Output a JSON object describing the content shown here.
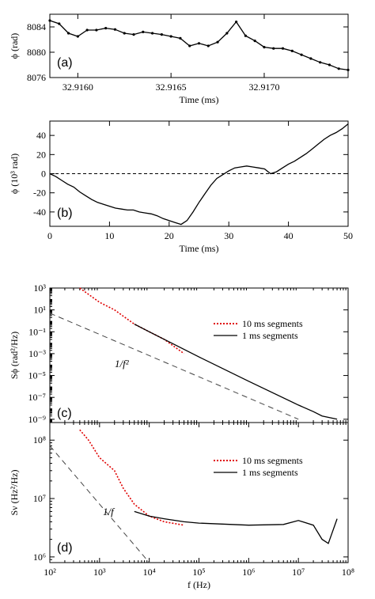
{
  "chart_data": [
    {
      "id": "a",
      "type": "line",
      "panel_label": "(a)",
      "xlabel": "Time (ms)",
      "ylabel": "ϕ (rad)",
      "xlim": [
        32.91585,
        32.91745
      ],
      "ylim": [
        8076,
        8086
      ],
      "xticks": [
        32.916,
        32.9165,
        32.917
      ],
      "xtick_labels": [
        "32.9160",
        "32.9165",
        "32.9170"
      ],
      "yticks": [
        8076,
        8080,
        8084
      ],
      "ytick_labels": [
        "8076",
        "8080",
        "8084"
      ],
      "series": [
        {
          "style": "black-line-with-dots",
          "x": [
            32.91585,
            32.9159,
            32.91595,
            32.916,
            32.91605,
            32.9161,
            32.91615,
            32.9162,
            32.91625,
            32.9163,
            32.91635,
            32.9164,
            32.91645,
            32.9165,
            32.91655,
            32.9166,
            32.91665,
            32.9167,
            32.91675,
            32.9168,
            32.91685,
            32.9169,
            32.91695,
            32.917,
            32.91705,
            32.9171,
            32.91715,
            32.9172,
            32.91725,
            32.9173,
            32.91735,
            32.9174,
            32.91745
          ],
          "y": [
            8085.0,
            8084.5,
            8083.0,
            8082.5,
            8083.5,
            8083.5,
            8083.8,
            8083.6,
            8083.0,
            8082.8,
            8083.2,
            8083.0,
            8082.8,
            8082.5,
            8082.2,
            8081.0,
            8081.4,
            8081.0,
            8081.6,
            8083.0,
            8084.8,
            8082.6,
            8081.8,
            8080.8,
            8080.6,
            8080.6,
            8080.2,
            8079.6,
            8079.0,
            8078.4,
            8078.0,
            8077.4,
            8077.2
          ]
        }
      ]
    },
    {
      "id": "b",
      "type": "line",
      "panel_label": "(b)",
      "xlabel": "Time (ms)",
      "ylabel": "ϕ (10³ rad)",
      "xlim": [
        0,
        50
      ],
      "ylim": [
        -55,
        55
      ],
      "xticks": [
        0,
        10,
        20,
        30,
        40,
        50
      ],
      "xtick_labels": [
        "0",
        "10",
        "20",
        "30",
        "40",
        "50"
      ],
      "yticks": [
        -40,
        -20,
        0,
        20,
        40
      ],
      "ytick_labels": [
        "-40",
        "-20",
        "0",
        "20",
        "40"
      ],
      "zero_line": "dashed",
      "series": [
        {
          "style": "black-line",
          "x": [
            0,
            1,
            2,
            3,
            4,
            5,
            6,
            7,
            8,
            9,
            10,
            11,
            12,
            13,
            14,
            15,
            16,
            17,
            18,
            19,
            20,
            21,
            22,
            23,
            24,
            25,
            26,
            27,
            28,
            29,
            30,
            31,
            32,
            33,
            34,
            35,
            36,
            37,
            38,
            39,
            40,
            41,
            42,
            43,
            44,
            45,
            46,
            47,
            48,
            49,
            50
          ],
          "y": [
            0,
            -3,
            -7,
            -11,
            -14,
            -19,
            -23,
            -27,
            -30,
            -32,
            -34,
            -36,
            -37,
            -38,
            -38,
            -40,
            -41,
            -42,
            -44,
            -47,
            -49,
            -51,
            -53,
            -49,
            -40,
            -30,
            -21,
            -12,
            -5,
            -1,
            3,
            6,
            7,
            8,
            7,
            6,
            5,
            0,
            2,
            6,
            10,
            13,
            17,
            21,
            26,
            31,
            36,
            40,
            43,
            47,
            52
          ]
        }
      ]
    },
    {
      "id": "c",
      "type": "line",
      "panel_label": "(c)",
      "xscale": "log",
      "yscale": "log",
      "xlim": [
        100,
        100000000
      ],
      "ylim": [
        5e-10,
        1000
      ],
      "yticks": [
        1000,
        10,
        0.1,
        0.001,
        1e-05,
        1e-07,
        1e-09
      ],
      "ytick_labels": [
        "10³",
        "10¹",
        "10⁻¹",
        "10⁻³",
        "10⁻⁵",
        "10⁻⁷",
        "10⁻⁹"
      ],
      "ylabel": "Sϕ (rad²/Hz)",
      "annotation": "1/f²",
      "legend_position": "right",
      "series": [
        {
          "name": "10 ms segments",
          "style": "red-dotted",
          "x": [
            400,
            1000,
            2000,
            5000,
            10000,
            20000,
            50000
          ],
          "y": [
            1000,
            50,
            10,
            0.5,
            0.1,
            0.02,
            0.001
          ]
        },
        {
          "name": "1 ms segments",
          "style": "black-solid",
          "x": [
            5000,
            10000,
            100000,
            1000000,
            10000000,
            20000000,
            30000000,
            60000000
          ],
          "y": [
            0.5,
            0.1,
            0.0005,
            3e-06,
            2e-08,
            5e-09,
            2e-09,
            1e-09
          ]
        },
        {
          "name": "",
          "style": "reference-dashed",
          "x": [
            100,
            10000000
          ],
          "y": [
            5,
            1e-09
          ]
        }
      ]
    },
    {
      "id": "d",
      "type": "line",
      "panel_label": "(d)",
      "xscale": "log",
      "yscale": "log",
      "xlim": [
        100,
        100000000
      ],
      "ylim": [
        800000,
        200000000
      ],
      "xticks": [
        100,
        1000,
        10000,
        100000,
        1000000,
        10000000,
        100000000
      ],
      "xtick_labels": [
        "10²",
        "10³",
        "10⁴",
        "10⁵",
        "10⁶",
        "10⁷",
        "10⁸"
      ],
      "yticks": [
        1000000,
        10000000,
        100000000
      ],
      "ytick_labels": [
        "10⁶",
        "10⁷",
        "10⁸"
      ],
      "xlabel": "f (Hz)",
      "ylabel": "Sν (Hz²/Hz)",
      "annotation": "1/f",
      "legend_position": "right",
      "series": [
        {
          "name": "10 ms segments",
          "style": "red-dotted",
          "x": [
            400,
            600,
            1000,
            2000,
            3000,
            5000,
            10000,
            20000,
            50000
          ],
          "y": [
            150000000,
            100000000,
            50000000,
            30000000,
            15000000,
            8000000,
            5000000,
            4000000,
            3500000
          ]
        },
        {
          "name": "1 ms segments",
          "style": "black-solid",
          "x": [
            5000,
            10000,
            20000,
            50000,
            100000,
            1000000,
            5000000,
            10000000,
            20000000,
            30000000,
            40000000,
            60000000
          ],
          "y": [
            6000000,
            5000000,
            4500000,
            4000000,
            3800000,
            3500000,
            3600000,
            4200000,
            3500000,
            2000000,
            1700000,
            4500000
          ]
        },
        {
          "name": "",
          "style": "reference-dashed",
          "x": [
            100,
            10000
          ],
          "y": [
            80000000,
            800000
          ]
        }
      ]
    }
  ]
}
